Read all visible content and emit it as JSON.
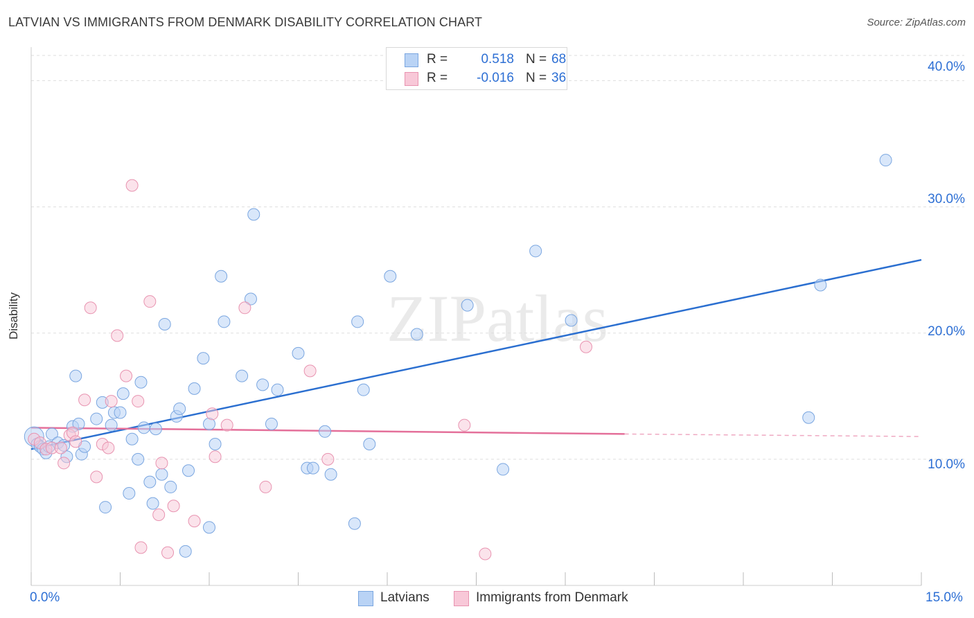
{
  "title": "LATVIAN VS IMMIGRANTS FROM DENMARK DISABILITY CORRELATION CHART",
  "source": "Source: ZipAtlas.com",
  "watermark": "ZIPatlas",
  "legend_top": {
    "series1": {
      "r_label": "R =",
      "r_value": "0.518",
      "n_label": "N =",
      "n_value": "68"
    },
    "series2": {
      "r_label": "R =",
      "r_value": "-0.016",
      "n_label": "N =",
      "n_value": "36"
    }
  },
  "legend_bottom": {
    "series1": "Latvians",
    "series2": "Immigrants from Denmark"
  },
  "colors": {
    "blue_fill": "#b9d3f5",
    "blue_stroke": "#7aa6e0",
    "blue_line": "#2b6fd0",
    "pink_fill": "#f8c8d8",
    "pink_stroke": "#e893b0",
    "pink_line": "#e4709a",
    "tick_text": "#2d6fd4",
    "grid": "#dddddd"
  },
  "chart_data": {
    "type": "scatter",
    "title": "LATVIAN VS IMMIGRANTS FROM DENMARK DISABILITY CORRELATION CHART",
    "xlabel": "",
    "ylabel": "Disability",
    "xlim": [
      0,
      15
    ],
    "ylim": [
      0,
      42
    ],
    "x_tick_labels": [
      "0.0%",
      "15.0%"
    ],
    "y_ticks": [
      10,
      20,
      30,
      40
    ],
    "y_tick_labels": [
      "10.0%",
      "20.0%",
      "30.0%",
      "40.0%"
    ],
    "grid": true,
    "legend_position": "top-center",
    "series": [
      {
        "name": "Latvians",
        "r": 0.518,
        "n": 68,
        "trend": {
          "x": [
            0,
            15
          ],
          "y": [
            10.8,
            25.8
          ]
        },
        "points": [
          [
            0.05,
            11.8
          ],
          [
            0.1,
            11.2
          ],
          [
            0.15,
            11.0
          ],
          [
            0.2,
            10.8
          ],
          [
            0.25,
            10.5
          ],
          [
            0.3,
            11.0
          ],
          [
            0.35,
            12.0
          ],
          [
            0.45,
            11.3
          ],
          [
            0.55,
            11.1
          ],
          [
            0.6,
            10.2
          ],
          [
            0.7,
            12.6
          ],
          [
            0.75,
            16.6
          ],
          [
            0.8,
            12.8
          ],
          [
            0.85,
            10.4
          ],
          [
            0.9,
            11.0
          ],
          [
            1.1,
            13.2
          ],
          [
            1.2,
            14.5
          ],
          [
            1.25,
            6.2
          ],
          [
            1.35,
            12.7
          ],
          [
            1.4,
            13.7
          ],
          [
            1.5,
            13.7
          ],
          [
            1.55,
            15.2
          ],
          [
            1.65,
            7.3
          ],
          [
            1.7,
            11.6
          ],
          [
            1.8,
            10.0
          ],
          [
            1.85,
            16.1
          ],
          [
            1.9,
            12.5
          ],
          [
            2.0,
            8.2
          ],
          [
            2.05,
            6.5
          ],
          [
            2.1,
            12.4
          ],
          [
            2.2,
            8.8
          ],
          [
            2.25,
            20.7
          ],
          [
            2.35,
            7.8
          ],
          [
            2.45,
            13.4
          ],
          [
            2.5,
            14.0
          ],
          [
            2.6,
            2.7
          ],
          [
            2.65,
            9.1
          ],
          [
            2.75,
            15.6
          ],
          [
            2.9,
            18.0
          ],
          [
            3.0,
            4.6
          ],
          [
            3.0,
            12.8
          ],
          [
            3.1,
            11.2
          ],
          [
            3.2,
            24.5
          ],
          [
            3.25,
            20.9
          ],
          [
            3.55,
            16.6
          ],
          [
            3.7,
            22.7
          ],
          [
            3.75,
            29.4
          ],
          [
            3.9,
            15.9
          ],
          [
            4.05,
            12.8
          ],
          [
            4.15,
            15.5
          ],
          [
            4.5,
            18.4
          ],
          [
            4.65,
            9.3
          ],
          [
            4.75,
            9.3
          ],
          [
            4.95,
            12.2
          ],
          [
            5.05,
            8.8
          ],
          [
            5.45,
            4.9
          ],
          [
            5.5,
            20.9
          ],
          [
            5.6,
            15.5
          ],
          [
            5.7,
            11.2
          ],
          [
            6.05,
            24.5
          ],
          [
            6.5,
            19.9
          ],
          [
            7.35,
            22.2
          ],
          [
            7.95,
            9.2
          ],
          [
            8.5,
            26.5
          ],
          [
            9.1,
            21.0
          ],
          [
            13.1,
            13.3
          ],
          [
            13.3,
            23.8
          ],
          [
            14.4,
            33.7
          ]
        ]
      },
      {
        "name": "Immigrants from Denmark",
        "r": -0.016,
        "n": 36,
        "trend": {
          "x": [
            0,
            10
          ],
          "y": [
            12.5,
            12.0
          ],
          "dashed_to": [
            15,
            11.8
          ]
        },
        "points": [
          [
            0.05,
            11.6
          ],
          [
            0.15,
            11.3
          ],
          [
            0.25,
            10.8
          ],
          [
            0.35,
            10.9
          ],
          [
            0.5,
            10.9
          ],
          [
            0.55,
            9.7
          ],
          [
            0.65,
            11.9
          ],
          [
            0.7,
            12.1
          ],
          [
            0.75,
            11.4
          ],
          [
            0.9,
            14.7
          ],
          [
            1.0,
            22.0
          ],
          [
            1.1,
            8.6
          ],
          [
            1.2,
            11.2
          ],
          [
            1.3,
            10.9
          ],
          [
            1.35,
            14.6
          ],
          [
            1.45,
            19.8
          ],
          [
            1.6,
            16.6
          ],
          [
            1.7,
            31.7
          ],
          [
            1.8,
            14.6
          ],
          [
            1.85,
            3.0
          ],
          [
            2.0,
            22.5
          ],
          [
            2.15,
            5.6
          ],
          [
            2.2,
            9.7
          ],
          [
            2.3,
            2.6
          ],
          [
            2.4,
            6.3
          ],
          [
            2.75,
            5.1
          ],
          [
            3.05,
            13.6
          ],
          [
            3.1,
            10.2
          ],
          [
            3.3,
            12.7
          ],
          [
            3.6,
            22.0
          ],
          [
            3.95,
            7.8
          ],
          [
            4.7,
            17.0
          ],
          [
            5.0,
            10.0
          ],
          [
            7.3,
            12.7
          ],
          [
            7.65,
            2.5
          ],
          [
            9.35,
            18.9
          ]
        ]
      }
    ]
  }
}
